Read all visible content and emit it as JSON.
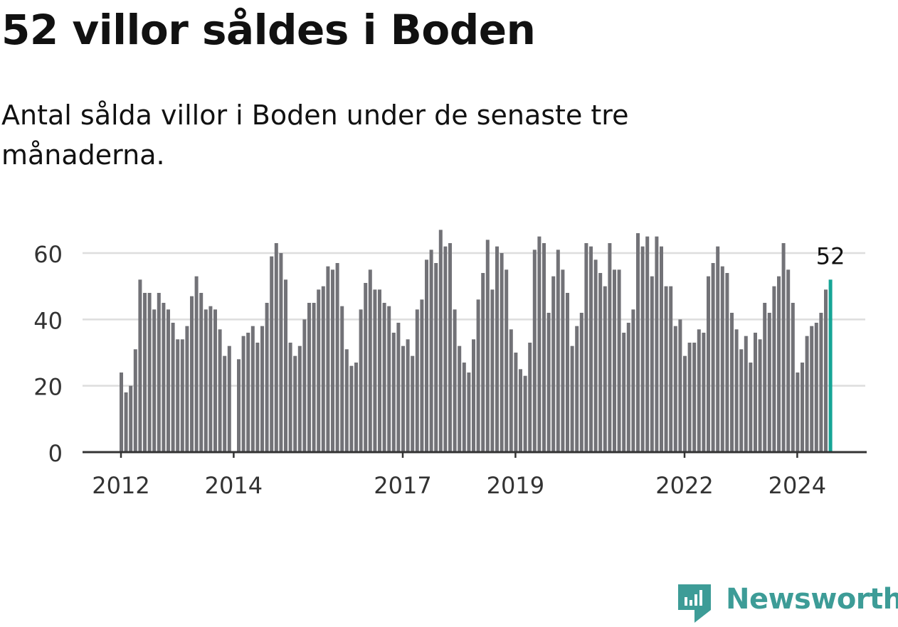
{
  "headline": "52 villor såldes i Boden",
  "subtitle": "Antal sålda villor i Boden under de senaste tre månaderna.",
  "brand": {
    "name": "Newsworthy",
    "color": "#3d9c97",
    "icon": "newsworthy-logo-icon"
  },
  "colors": {
    "bar": "#727277",
    "highlight": "#16a596",
    "grid": "#dddddd",
    "axis": "#333333"
  },
  "chart_data": {
    "type": "bar",
    "title": "52 villor såldes i Boden",
    "subtitle": "Antal sålda villor i Boden under de senaste tre månaderna.",
    "xlabel": "",
    "ylabel": "",
    "ylim": [
      0,
      70
    ],
    "yticks": [
      0,
      20,
      40,
      60
    ],
    "grid": true,
    "legend": "none",
    "x_tick_labels": [
      "2012",
      "2014",
      "2017",
      "2019",
      "2022",
      "2024"
    ],
    "x_tick_months": [
      0,
      24,
      60,
      84,
      120,
      144
    ],
    "start": "2012-01",
    "end": "2024-07",
    "highlight_label": "52",
    "values": [
      24,
      18,
      20,
      31,
      52,
      48,
      48,
      43,
      48,
      45,
      43,
      39,
      34,
      34,
      38,
      47,
      53,
      48,
      43,
      44,
      43,
      37,
      29,
      32,
      null,
      28,
      35,
      36,
      38,
      33,
      38,
      45,
      59,
      63,
      60,
      52,
      33,
      29,
      32,
      40,
      45,
      45,
      49,
      50,
      56,
      55,
      57,
      44,
      31,
      26,
      27,
      43,
      51,
      55,
      49,
      49,
      45,
      44,
      36,
      39,
      32,
      34,
      29,
      43,
      46,
      58,
      61,
      57,
      67,
      62,
      63,
      43,
      32,
      27,
      24,
      34,
      46,
      54,
      64,
      49,
      62,
      60,
      55,
      37,
      30,
      25,
      23,
      33,
      61,
      65,
      63,
      42,
      53,
      61,
      55,
      48,
      32,
      38,
      42,
      63,
      62,
      58,
      54,
      50,
      63,
      55,
      55,
      36,
      39,
      43,
      66,
      62,
      65,
      53,
      65,
      62,
      50,
      50,
      38,
      40,
      29,
      33,
      33,
      37,
      36,
      53,
      57,
      62,
      56,
      54,
      42,
      37,
      31,
      35,
      27,
      36,
      34,
      45,
      42,
      50,
      53,
      63,
      55,
      45,
      24,
      27,
      35,
      38,
      39,
      42,
      49,
      52
    ]
  }
}
